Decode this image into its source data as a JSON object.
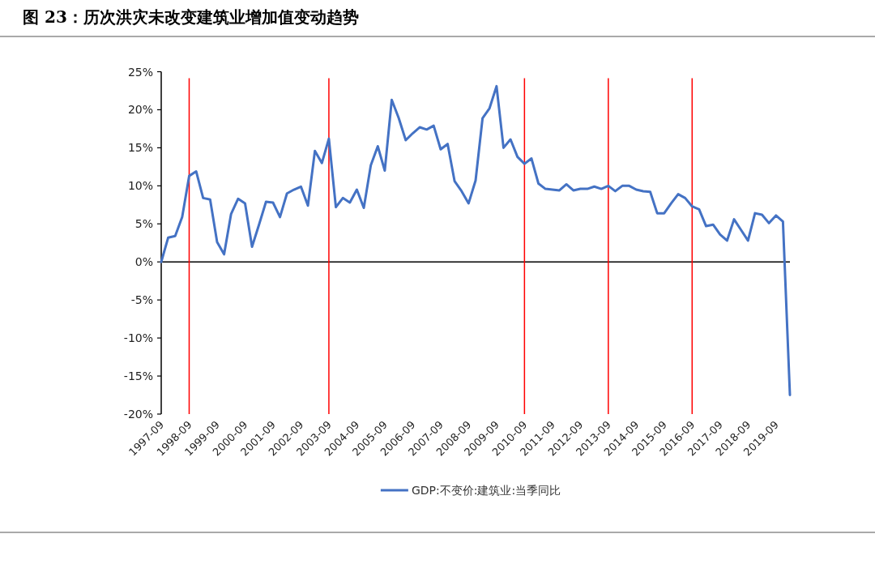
{
  "chart_data": {
    "type": "line",
    "title": "图 23：历次洪灾未改变建筑业增加值变动趋势",
    "x": [
      "1997-09",
      "1997-12",
      "1998-03",
      "1998-06",
      "1998-09",
      "1998-12",
      "1999-03",
      "1999-06",
      "1999-09",
      "1999-12",
      "2000-03",
      "2000-06",
      "2000-09",
      "2000-12",
      "2001-03",
      "2001-06",
      "2001-09",
      "2001-12",
      "2002-03",
      "2002-06",
      "2002-09",
      "2002-12",
      "2003-03",
      "2003-06",
      "2003-09",
      "2003-12",
      "2004-03",
      "2004-06",
      "2004-09",
      "2004-12",
      "2005-03",
      "2005-06",
      "2005-09",
      "2005-12",
      "2006-03",
      "2006-06",
      "2006-09",
      "2006-12",
      "2007-03",
      "2007-06",
      "2007-09",
      "2007-12",
      "2008-03",
      "2008-06",
      "2008-09",
      "2008-12",
      "2009-03",
      "2009-06",
      "2009-09",
      "2009-12",
      "2010-03",
      "2010-06",
      "2010-09",
      "2010-12",
      "2011-03",
      "2011-06",
      "2011-09",
      "2011-12",
      "2012-03",
      "2012-06",
      "2012-09",
      "2012-12",
      "2013-03",
      "2013-06",
      "2013-09",
      "2013-12",
      "2014-03",
      "2014-06",
      "2014-09",
      "2014-12",
      "2015-03",
      "2015-06",
      "2015-09",
      "2015-12",
      "2016-03",
      "2016-06",
      "2016-09",
      "2016-12",
      "2017-03",
      "2017-06",
      "2017-09",
      "2017-12",
      "2018-03",
      "2018-06",
      "2018-09",
      "2018-12",
      "2019-03",
      "2019-06",
      "2019-09",
      "2019-12",
      "2020-03"
    ],
    "series": [
      {
        "name": "GDP:不变价:建筑业:当季同比",
        "color": "#4472c4",
        "values": [
          0,
          3.2,
          3.4,
          5.9,
          11.3,
          11.9,
          8.4,
          8.2,
          2.6,
          1.0,
          6.3,
          8.3,
          7.7,
          2.0,
          4.9,
          7.9,
          7.8,
          5.9,
          9.0,
          9.5,
          9.9,
          7.4,
          14.6,
          13.0,
          16.2,
          7.2,
          8.4,
          7.8,
          9.5,
          7.1,
          12.7,
          15.2,
          12.0,
          21.3,
          18.9,
          16.0,
          16.9,
          17.7,
          17.4,
          17.9,
          14.8,
          15.5,
          10.6,
          9.3,
          7.7,
          10.7,
          18.9,
          20.2,
          23.1,
          15.0,
          16.1,
          13.8,
          12.9,
          13.6,
          10.3,
          9.6,
          9.5,
          9.4,
          10.2,
          9.4,
          9.6,
          9.6,
          9.9,
          9.6,
          10.0,
          9.3,
          10.0,
          10.0,
          9.5,
          9.3,
          9.2,
          6.4,
          6.4,
          7.7,
          8.9,
          8.4,
          7.3,
          6.9,
          4.7,
          4.9,
          3.6,
          2.8,
          5.6,
          4.2,
          2.8,
          6.4,
          6.2,
          5.1,
          6.1,
          5.3,
          -17.5
        ]
      }
    ],
    "xlim": [
      "1997-09",
      "2020-03"
    ],
    "xticks": [
      "1997-09",
      "1998-09",
      "1999-09",
      "2000-09",
      "2001-09",
      "2002-09",
      "2003-09",
      "2004-09",
      "2005-09",
      "2006-09",
      "2007-09",
      "2008-09",
      "2009-09",
      "2010-09",
      "2011-09",
      "2012-09",
      "2013-09",
      "2014-09",
      "2015-09",
      "2016-09",
      "2017-09",
      "2018-09",
      "2019-09"
    ],
    "ylim": [
      -20,
      25
    ],
    "yticks": [
      {
        "value": -20,
        "label": "-20%"
      },
      {
        "value": -15,
        "label": "-15%"
      },
      {
        "value": -10,
        "label": "-10%"
      },
      {
        "value": -5,
        "label": "-5%"
      },
      {
        "value": 0,
        "label": "0%"
      },
      {
        "value": 5,
        "label": "5%"
      },
      {
        "value": 10,
        "label": "10%"
      },
      {
        "value": 15,
        "label": "15%"
      },
      {
        "value": 20,
        "label": "20%"
      },
      {
        "value": 25,
        "label": "25%"
      }
    ],
    "ref_lines": [
      {
        "axis": "x",
        "value": "1998-09",
        "color": "#ff0000"
      },
      {
        "axis": "x",
        "value": "2003-09",
        "color": "#ff0000"
      },
      {
        "axis": "x",
        "value": "2010-09",
        "color": "#ff0000"
      },
      {
        "axis": "x",
        "value": "2013-09",
        "color": "#ff0000"
      },
      {
        "axis": "x",
        "value": "2016-09",
        "color": "#ff0000"
      }
    ],
    "grid": false,
    "legend": "bottom",
    "marker": "none",
    "line_style": "solid"
  }
}
